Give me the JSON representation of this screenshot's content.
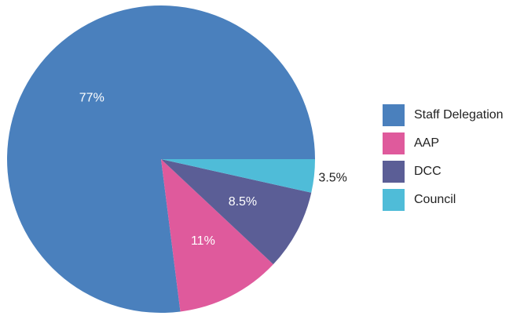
{
  "chart_data": {
    "type": "pie",
    "categories": [
      "Staff Delegation",
      "AAP",
      "DCC",
      "Council"
    ],
    "values": [
      77,
      11,
      8.5,
      3.5
    ],
    "value_labels": [
      "77%",
      "11%",
      "8.5%",
      "3.5%"
    ],
    "colors": [
      "#4a80bd",
      "#df5a9c",
      "#5b5e96",
      "#4fbcd8"
    ],
    "legend": "right"
  }
}
